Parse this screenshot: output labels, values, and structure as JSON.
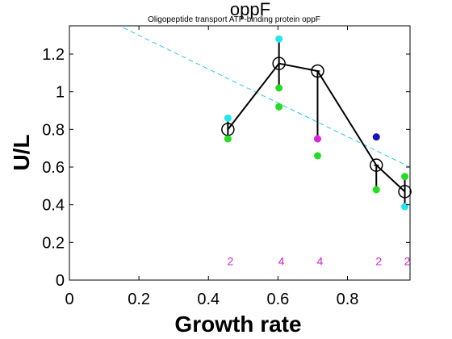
{
  "chart_data": {
    "type": "scatter",
    "title": "oppF",
    "subtitle": "Oligopeptide transport ATP-binding protein oppF",
    "xlabel": "Growth rate",
    "ylabel": "U/L",
    "xlim": [
      0,
      0.98
    ],
    "ylim": [
      0,
      1.35
    ],
    "xticks": [
      "0",
      "0.2",
      "0.4",
      "0.6",
      "0.8"
    ],
    "xtick_values": [
      0,
      0.2,
      0.4,
      0.6,
      0.8
    ],
    "yticks": [
      "0",
      "0.2",
      "0.4",
      "0.6",
      "0.8",
      "1",
      "1.2"
    ],
    "ytick_values": [
      0,
      0.2,
      0.4,
      0.6,
      0.8,
      1.0,
      1.2
    ],
    "grid": false,
    "mean_line": {
      "x": [
        0.456,
        0.603,
        0.714,
        0.883,
        0.965
      ],
      "y": [
        0.8,
        1.15,
        1.11,
        0.61,
        0.47
      ],
      "err_low": [
        0.75,
        1.02,
        0.75,
        0.48,
        0.39
      ],
      "err_high": [
        0.86,
        1.28,
        1.11,
        0.61,
        0.55
      ],
      "color": "#000000"
    },
    "points": [
      {
        "x": 0.456,
        "y": 0.86,
        "color": "#22e5f0"
      },
      {
        "x": 0.456,
        "y": 0.75,
        "color": "#22dd22"
      },
      {
        "x": 0.603,
        "y": 1.28,
        "color": "#22e5f0"
      },
      {
        "x": 0.603,
        "y": 1.02,
        "color": "#22dd22"
      },
      {
        "x": 0.603,
        "y": 0.92,
        "color": "#22dd22"
      },
      {
        "x": 0.714,
        "y": 0.75,
        "color": "#e020e0"
      },
      {
        "x": 0.714,
        "y": 0.66,
        "color": "#22dd22"
      },
      {
        "x": 0.883,
        "y": 0.76,
        "color": "#1515b8"
      },
      {
        "x": 0.883,
        "y": 0.48,
        "color": "#22dd22"
      },
      {
        "x": 0.965,
        "y": 0.55,
        "color": "#22dd22"
      },
      {
        "x": 0.965,
        "y": 0.39,
        "color": "#22e5f0"
      }
    ],
    "trend_line": {
      "x": [
        0.155,
        0.98
      ],
      "y": [
        1.34,
        0.6
      ],
      "color": "#22c8e8",
      "style": "dashed"
    },
    "counts": [
      {
        "x": 0.456,
        "label": "2"
      },
      {
        "x": 0.603,
        "label": "4"
      },
      {
        "x": 0.714,
        "label": "4"
      },
      {
        "x": 0.883,
        "label": "2"
      },
      {
        "x": 0.965,
        "label": "2"
      }
    ],
    "counts_y": 0.1,
    "count_color": "#d020d0"
  }
}
